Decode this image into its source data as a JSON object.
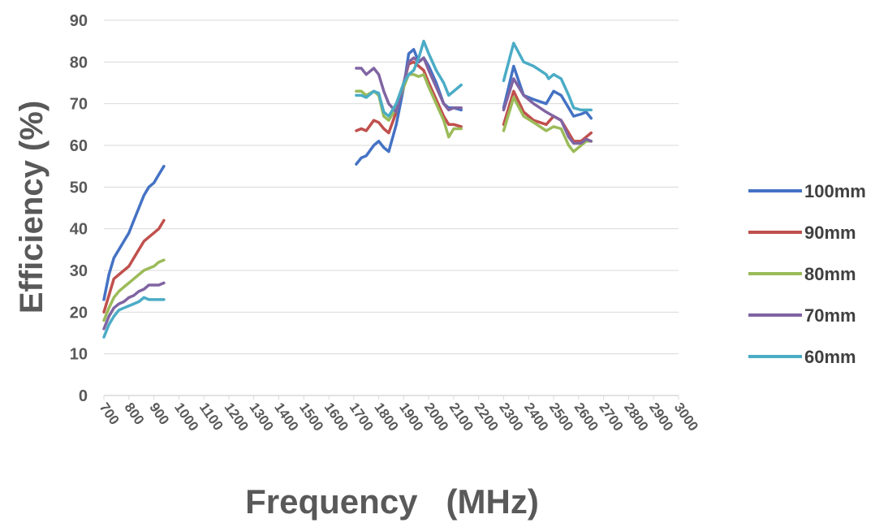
{
  "chart_data": {
    "type": "line",
    "xlabel": "Frequency   (MHz)",
    "ylabel": "Efficiency  (%)",
    "xlim": [
      700,
      3000
    ],
    "ylim": [
      0,
      90
    ],
    "yticks": [
      0,
      10,
      20,
      30,
      40,
      50,
      60,
      70,
      80,
      90
    ],
    "xticks": [
      700,
      800,
      900,
      1000,
      1100,
      1200,
      1300,
      1400,
      1500,
      1600,
      1700,
      1800,
      1900,
      2000,
      2100,
      2200,
      2300,
      2400,
      2500,
      2600,
      2700,
      2800,
      2900,
      3000
    ],
    "grid": "horizontal",
    "legend_position": "right",
    "series": [
      {
        "name": "100mm",
        "color": "#4472C4",
        "segments": [
          [
            [
              700,
              23
            ],
            [
              720,
              29
            ],
            [
              740,
              33
            ],
            [
              760,
              35
            ],
            [
              780,
              37
            ],
            [
              800,
              39
            ],
            [
              820,
              42
            ],
            [
              840,
              45
            ],
            [
              860,
              48
            ],
            [
              880,
              50
            ],
            [
              900,
              51
            ],
            [
              920,
              53
            ],
            [
              940,
              55
            ]
          ],
          [
            [
              1710,
              55.5
            ],
            [
              1730,
              57
            ],
            [
              1750,
              57.5
            ],
            [
              1780,
              60
            ],
            [
              1800,
              61
            ],
            [
              1820,
              59.5
            ],
            [
              1840,
              58.5
            ],
            [
              1870,
              65
            ],
            [
              1900,
              74
            ],
            [
              1920,
              82
            ],
            [
              1940,
              83
            ],
            [
              1960,
              80
            ],
            [
              1980,
              81
            ],
            [
              2000,
              79
            ],
            [
              2030,
              75
            ],
            [
              2060,
              70
            ],
            [
              2080,
              69
            ],
            [
              2100,
              69
            ],
            [
              2130,
              68.5
            ]
          ],
          [
            [
              2300,
              69
            ],
            [
              2340,
              79
            ],
            [
              2380,
              72
            ],
            [
              2420,
              71
            ],
            [
              2470,
              70
            ],
            [
              2500,
              73
            ],
            [
              2530,
              72
            ],
            [
              2560,
              69
            ],
            [
              2580,
              67
            ],
            [
              2610,
              67.5
            ],
            [
              2630,
              68
            ],
            [
              2650,
              66.5
            ]
          ]
        ]
      },
      {
        "name": "90mm",
        "color": "#C0504D",
        "segments": [
          [
            [
              700,
              20
            ],
            [
              720,
              24
            ],
            [
              740,
              28
            ],
            [
              760,
              29
            ],
            [
              780,
              30
            ],
            [
              800,
              31
            ],
            [
              820,
              33
            ],
            [
              840,
              35
            ],
            [
              860,
              37
            ],
            [
              880,
              38
            ],
            [
              900,
              39
            ],
            [
              920,
              40
            ],
            [
              940,
              42
            ]
          ],
          [
            [
              1710,
              63.5
            ],
            [
              1730,
              64
            ],
            [
              1750,
              63.5
            ],
            [
              1780,
              66
            ],
            [
              1800,
              65.5
            ],
            [
              1820,
              64
            ],
            [
              1840,
              63
            ],
            [
              1870,
              68
            ],
            [
              1900,
              75
            ],
            [
              1920,
              79.5
            ],
            [
              1940,
              80
            ],
            [
              1960,
              79
            ],
            [
              1980,
              78
            ],
            [
              2000,
              75
            ],
            [
              2030,
              71
            ],
            [
              2060,
              67
            ],
            [
              2080,
              65
            ],
            [
              2100,
              65
            ],
            [
              2130,
              64.5
            ]
          ],
          [
            [
              2300,
              65
            ],
            [
              2340,
              73
            ],
            [
              2380,
              68
            ],
            [
              2420,
              66
            ],
            [
              2470,
              65
            ],
            [
              2500,
              67
            ],
            [
              2530,
              66
            ],
            [
              2560,
              63
            ],
            [
              2580,
              61
            ],
            [
              2610,
              61
            ],
            [
              2630,
              62
            ],
            [
              2650,
              63
            ]
          ]
        ]
      },
      {
        "name": "80mm",
        "color": "#9BBB59",
        "segments": [
          [
            [
              700,
              18
            ],
            [
              720,
              21
            ],
            [
              740,
              23.5
            ],
            [
              760,
              25
            ],
            [
              780,
              26
            ],
            [
              800,
              27
            ],
            [
              820,
              28
            ],
            [
              840,
              29
            ],
            [
              860,
              30
            ],
            [
              880,
              30.5
            ],
            [
              900,
              31
            ],
            [
              920,
              32
            ],
            [
              940,
              32.5
            ]
          ],
          [
            [
              1710,
              73
            ],
            [
              1730,
              73
            ],
            [
              1750,
              72
            ],
            [
              1780,
              73
            ],
            [
              1800,
              72
            ],
            [
              1820,
              67
            ],
            [
              1840,
              66
            ],
            [
              1870,
              69
            ],
            [
              1900,
              74
            ],
            [
              1920,
              77
            ],
            [
              1940,
              77
            ],
            [
              1960,
              76.5
            ],
            [
              1980,
              77
            ],
            [
              2000,
              74
            ],
            [
              2030,
              70
            ],
            [
              2060,
              66
            ],
            [
              2080,
              62
            ],
            [
              2100,
              64
            ],
            [
              2130,
              64
            ]
          ],
          [
            [
              2300,
              63.5
            ],
            [
              2340,
              71.5
            ],
            [
              2380,
              67
            ],
            [
              2420,
              65.5
            ],
            [
              2470,
              63.5
            ],
            [
              2500,
              64.5
            ],
            [
              2530,
              64
            ],
            [
              2560,
              60
            ],
            [
              2580,
              58.5
            ],
            [
              2610,
              60
            ],
            [
              2630,
              61
            ],
            [
              2650,
              61
            ]
          ]
        ]
      },
      {
        "name": "70mm",
        "color": "#8064A2",
        "segments": [
          [
            [
              700,
              16
            ],
            [
              720,
              19
            ],
            [
              740,
              21
            ],
            [
              760,
              22
            ],
            [
              780,
              22.5
            ],
            [
              800,
              23.5
            ],
            [
              820,
              24
            ],
            [
              840,
              25
            ],
            [
              860,
              25.5
            ],
            [
              880,
              26.5
            ],
            [
              900,
              26.5
            ],
            [
              920,
              26.5
            ],
            [
              940,
              27
            ]
          ],
          [
            [
              1710,
              78.5
            ],
            [
              1730,
              78.5
            ],
            [
              1750,
              77
            ],
            [
              1780,
              78.5
            ],
            [
              1800,
              77
            ],
            [
              1820,
              73
            ],
            [
              1840,
              70
            ],
            [
              1870,
              68
            ],
            [
              1900,
              75
            ],
            [
              1920,
              80
            ],
            [
              1940,
              81
            ],
            [
              1960,
              80
            ],
            [
              1980,
              81
            ],
            [
              2000,
              78
            ],
            [
              2030,
              74
            ],
            [
              2060,
              70
            ],
            [
              2080,
              68.5
            ],
            [
              2100,
              69
            ],
            [
              2130,
              69
            ]
          ],
          [
            [
              2300,
              68.5
            ],
            [
              2340,
              76
            ],
            [
              2380,
              72
            ],
            [
              2420,
              70
            ],
            [
              2470,
              68
            ],
            [
              2500,
              67
            ],
            [
              2530,
              66
            ],
            [
              2560,
              62
            ],
            [
              2580,
              60.5
            ],
            [
              2610,
              60.5
            ],
            [
              2630,
              61.5
            ],
            [
              2650,
              61
            ]
          ]
        ]
      },
      {
        "name": "60mm",
        "color": "#4BACC6",
        "segments": [
          [
            [
              700,
              14
            ],
            [
              720,
              17
            ],
            [
              740,
              19
            ],
            [
              760,
              20.5
            ],
            [
              780,
              21
            ],
            [
              800,
              21.5
            ],
            [
              820,
              22
            ],
            [
              840,
              22.5
            ],
            [
              860,
              23.5
            ],
            [
              880,
              23
            ],
            [
              900,
              23
            ],
            [
              920,
              23
            ],
            [
              940,
              23
            ]
          ],
          [
            [
              1710,
              72
            ],
            [
              1730,
              72
            ],
            [
              1750,
              71.5
            ],
            [
              1780,
              73
            ],
            [
              1800,
              72.5
            ],
            [
              1820,
              68
            ],
            [
              1840,
              67
            ],
            [
              1870,
              70
            ],
            [
              1900,
              75
            ],
            [
              1920,
              77
            ],
            [
              1940,
              78
            ],
            [
              1960,
              81
            ],
            [
              1980,
              85
            ],
            [
              2000,
              82
            ],
            [
              2030,
              78
            ],
            [
              2060,
              75
            ],
            [
              2080,
              72
            ],
            [
              2100,
              73
            ],
            [
              2130,
              74.5
            ]
          ],
          [
            [
              2300,
              75.5
            ],
            [
              2340,
              84.5
            ],
            [
              2380,
              80
            ],
            [
              2420,
              79
            ],
            [
              2470,
              77
            ],
            [
              2480,
              76
            ],
            [
              2500,
              77
            ],
            [
              2530,
              76
            ],
            [
              2560,
              72
            ],
            [
              2580,
              69
            ],
            [
              2610,
              68.5
            ],
            [
              2630,
              68.5
            ],
            [
              2650,
              68.5
            ]
          ]
        ]
      }
    ]
  }
}
